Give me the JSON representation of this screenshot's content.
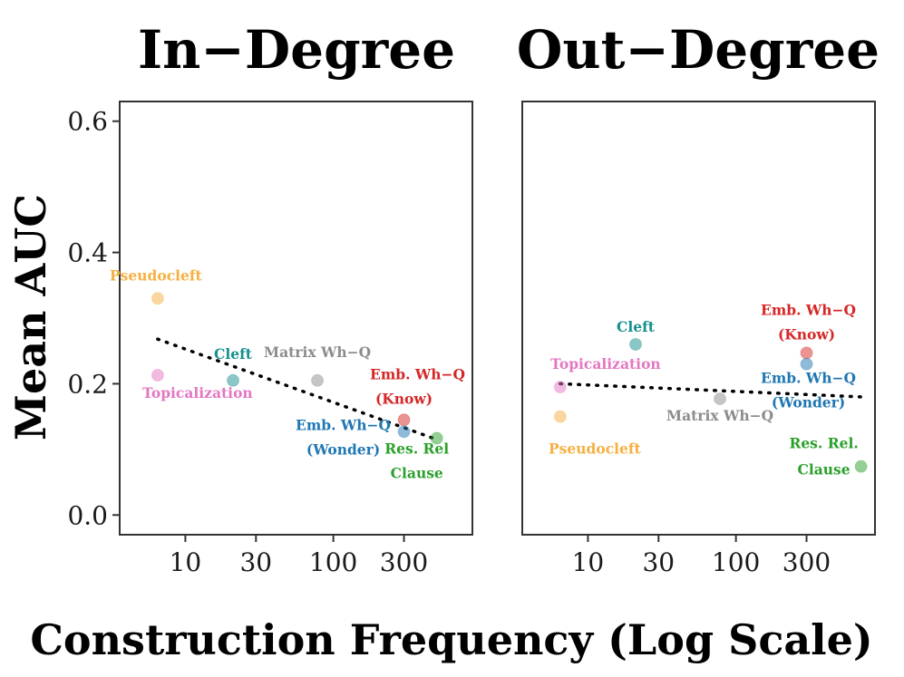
{
  "chart_data": {
    "type": "scatter",
    "xlabel": "Construction Frequency (Log Scale)",
    "ylabel": "Mean AUC",
    "x_scale": "log",
    "x_ticks": [
      10,
      30,
      100,
      300
    ],
    "x_tick_labels": [
      "10",
      "30",
      "100",
      "300"
    ],
    "y_ticks": [
      0,
      0.2,
      0.4,
      0.6
    ],
    "y_tick_labels": [
      "0.0",
      "0.2",
      "0.4",
      "0.6"
    ],
    "ylim": [
      -0.03,
      0.63
    ],
    "xlim": [
      3.6,
      870
    ],
    "grid": false,
    "legend": "none",
    "colors": {
      "Pseudocleft": "#f5b041",
      "Topicalization": "#e377c2",
      "Cleft": "#17908f",
      "Matrix Wh-Q": "#8c8c8c",
      "Emb. Wh-Q (Know)": "#d62728",
      "Emb. Wh-Q (Wonder)": "#1f77b4",
      "Res. Rel Clause": "#2ca02c"
    },
    "panels": [
      {
        "title": "In−Degree",
        "points": [
          {
            "label": "Pseudocleft",
            "x": 6.5,
            "y": 0.33,
            "label_lines": [
              "Pseudocleft"
            ]
          },
          {
            "label": "Topicalization",
            "x": 6.5,
            "y": 0.213,
            "label_lines": [
              "Topicalization"
            ]
          },
          {
            "label": "Cleft",
            "x": 21,
            "y": 0.205,
            "label_lines": [
              "Cleft"
            ]
          },
          {
            "label": "Matrix Wh-Q",
            "x": 78,
            "y": 0.205,
            "label_lines": [
              "Matrix Wh−Q"
            ]
          },
          {
            "label": "Emb. Wh-Q (Know)",
            "x": 300,
            "y": 0.145,
            "label_lines": [
              "Emb. Wh−Q",
              "(Know)"
            ]
          },
          {
            "label": "Emb. Wh-Q (Wonder)",
            "x": 300,
            "y": 0.127,
            "label_lines": [
              "Emb. Wh−Q",
              "(Wonder)"
            ]
          },
          {
            "label": "Res. Rel Clause",
            "x": 500,
            "y": 0.117,
            "label_lines": [
              "Res. Rel",
              "Clause"
            ]
          }
        ],
        "trend": {
          "x": [
            6.5,
            500
          ],
          "y": [
            0.268,
            0.115
          ]
        }
      },
      {
        "title": "Out−Degree",
        "points": [
          {
            "label": "Cleft",
            "x": 21,
            "y": 0.26,
            "label_lines": [
              "Cleft"
            ]
          },
          {
            "label": "Topicalization",
            "x": 6.5,
            "y": 0.195,
            "label_lines": [
              "Topicalization"
            ]
          },
          {
            "label": "Pseudocleft",
            "x": 6.5,
            "y": 0.15,
            "label_lines": [
              "Pseudocleft"
            ]
          },
          {
            "label": "Matrix Wh-Q",
            "x": 78,
            "y": 0.177,
            "label_lines": [
              "Matrix Wh−Q"
            ]
          },
          {
            "label": "Emb. Wh-Q (Know)",
            "x": 300,
            "y": 0.247,
            "label_lines": [
              "Emb. Wh−Q",
              "(Know)"
            ]
          },
          {
            "label": "Emb. Wh-Q (Wonder)",
            "x": 300,
            "y": 0.23,
            "label_lines": [
              "Emb. Wh−Q",
              "(Wonder)"
            ]
          },
          {
            "label": "Res. Rel Clause",
            "x": 700,
            "y": 0.074,
            "label_lines": [
              "Res. Rel.",
              "Clause"
            ]
          }
        ],
        "trend": {
          "x": [
            6.5,
            700
          ],
          "y": [
            0.2,
            0.18
          ]
        }
      }
    ]
  }
}
